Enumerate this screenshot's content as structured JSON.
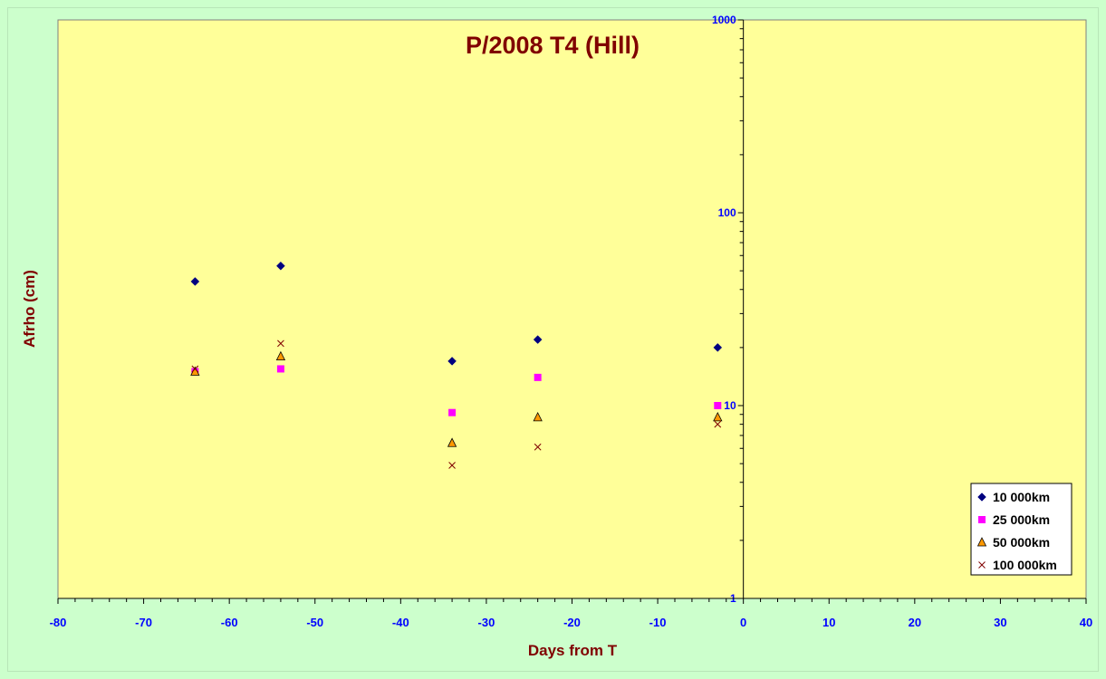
{
  "chart_data": {
    "type": "scatter",
    "title": "P/2008 T4 (Hill)",
    "xlabel": "Days from T",
    "ylabel": "Afrho (cm)",
    "xlim": [
      -80,
      40
    ],
    "ylim": [
      1,
      1000
    ],
    "y_scale": "log",
    "x_ticks": [
      -80,
      -70,
      -60,
      -50,
      -40,
      -30,
      -20,
      -10,
      0,
      10,
      20,
      30,
      40
    ],
    "y_ticks": [
      1,
      10,
      100,
      1000
    ],
    "grid": false,
    "legend_position": "bottom-right",
    "series": [
      {
        "name": "10 000km",
        "marker": "diamond",
        "color": "#000080",
        "x": [
          -64,
          -54,
          -34,
          -24,
          -3
        ],
        "y": [
          44,
          53,
          17,
          22,
          20
        ]
      },
      {
        "name": "25 000km",
        "marker": "square",
        "color": "#ff00ff",
        "x": [
          -64,
          -54,
          -34,
          -24,
          -3
        ],
        "y": [
          15,
          15.5,
          9.2,
          14,
          10
        ]
      },
      {
        "name": "50 000km",
        "marker": "triangle",
        "color": "#ff9900",
        "x": [
          -64,
          -54,
          -34,
          -24,
          -3
        ],
        "y": [
          15,
          18,
          6.4,
          8.7,
          8.7
        ]
      },
      {
        "name": "100 000km",
        "marker": "x",
        "color": "#800000",
        "x": [
          -64,
          -54,
          -34,
          -24,
          -3
        ],
        "y": [
          15.5,
          21,
          4.9,
          6.1,
          8
        ]
      }
    ]
  },
  "colors": {
    "background": "#ccffcc",
    "plot_area": "#ffff99",
    "title_color": "#800000",
    "tick_color": "#0000ff"
  }
}
